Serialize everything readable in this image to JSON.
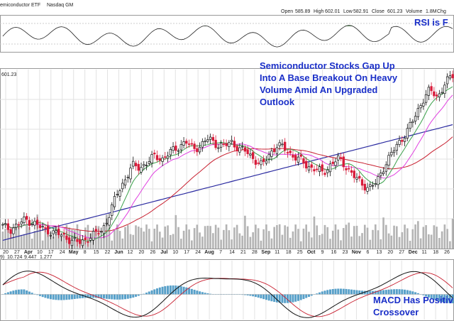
{
  "chart_data": {
    "type": "candlestick",
    "title_fragment": "emiconductor ETF",
    "exchange": "Nasdaq GM",
    "quote": {
      "open_label": "Open",
      "open": "585.89",
      "high_label": "High",
      "high": "602.01",
      "low_label": "Low",
      "low": "582.91",
      "close_label": "Close",
      "close": "601.23",
      "volume_label": "Volume",
      "volume": "1.8M",
      "change_label": "Chg"
    },
    "last_price_label": "601.23",
    "macd_legend": {
      "prefix": "9)",
      "v1": "10.724",
      "v2": "9.447",
      "v3": "1.277"
    },
    "x_labels": [
      "20",
      "27",
      "Apr",
      "10",
      "17",
      "24",
      "May",
      "8",
      "15",
      "22",
      "Jun",
      "12",
      "20",
      "26",
      "Jul",
      "10",
      "17",
      "24",
      "Aug",
      "7",
      "14",
      "21",
      "28",
      "Sep",
      "11",
      "18",
      "25",
      "Oct",
      "9",
      "16",
      "23",
      "Nov",
      "6",
      "13",
      "20",
      "27",
      "Dec",
      "11",
      "18",
      "26"
    ],
    "annotations": {
      "rsi": "RSI is F",
      "main": [
        "Semiconductor Stocks Gap Up",
        "Into A Base Breakout On Heavy",
        "Volume Amid An Upgraded",
        "Outlook"
      ],
      "macd": [
        "MACD Has Positiv",
        "Crossover"
      ]
    },
    "close_series": [
      382,
      378,
      385,
      392,
      388,
      380,
      376,
      372,
      368,
      362,
      358,
      364,
      370,
      376,
      400,
      430,
      450,
      470,
      468,
      475,
      485,
      480,
      490,
      498,
      505,
      495,
      500,
      510,
      502,
      498,
      505,
      495,
      490,
      480,
      470,
      488,
      500,
      495,
      485,
      478,
      470,
      465,
      460,
      472,
      480,
      470,
      455,
      445,
      438,
      445,
      470,
      488,
      505,
      520,
      540,
      565,
      580,
      570,
      590,
      601
    ],
    "ylim": [
      350,
      610
    ],
    "colors": {
      "up": "#111111",
      "down": "#d81b3a",
      "ma_fast": "#3aa04a",
      "ma_mid": "#e040e0",
      "ma_slow": "#c82030",
      "ma_long": "#2a2aa0",
      "volume": "#b4b4b4",
      "annotation": "#1a2fc8",
      "rsi_fill": "#4a9a4a",
      "hist": "#3a8fc0"
    }
  }
}
